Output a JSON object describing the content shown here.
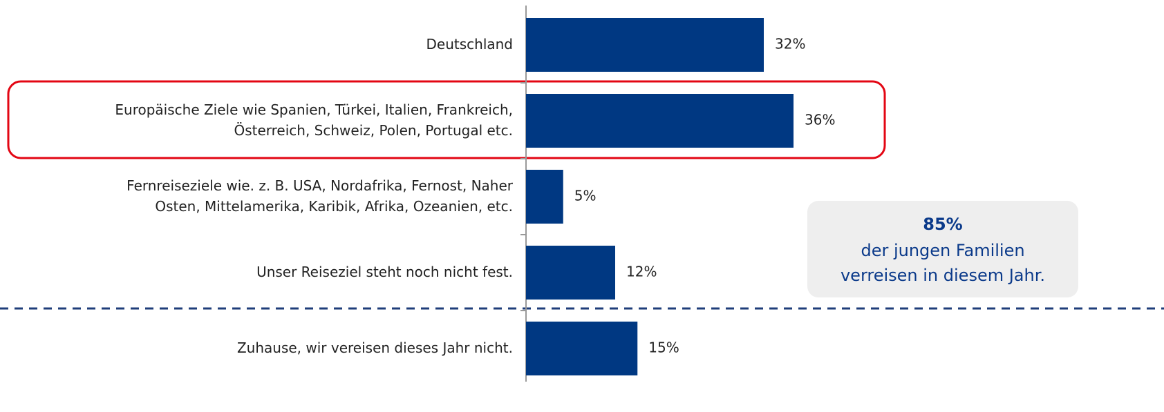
{
  "chart_data": {
    "type": "bar",
    "orientation": "horizontal",
    "categories": [
      "Deutschland",
      "Europäische Ziele wie Spanien, Türkei, Italien, Frankreich,\nÖsterreich, Schweiz, Polen, Portugal etc.",
      "Fernreiseziele wie. z. B. USA, Nordafrika, Fernost, Naher\nOsten, Mittelamerika, Karibik, Afrika, Ozeanien, etc.",
      "Unser Reiseziel steht noch nicht fest.",
      "Zuhause, wir vereisen dieses Jahr nicht."
    ],
    "values": [
      32,
      36,
      5,
      12,
      15
    ],
    "value_labels": [
      "32%",
      "36%",
      "5%",
      "12%",
      "15%"
    ],
    "color": "#003882",
    "annotation": {
      "headline": "85%",
      "text": "der jungen Familien\nverreisen in diesem Jahr."
    }
  }
}
